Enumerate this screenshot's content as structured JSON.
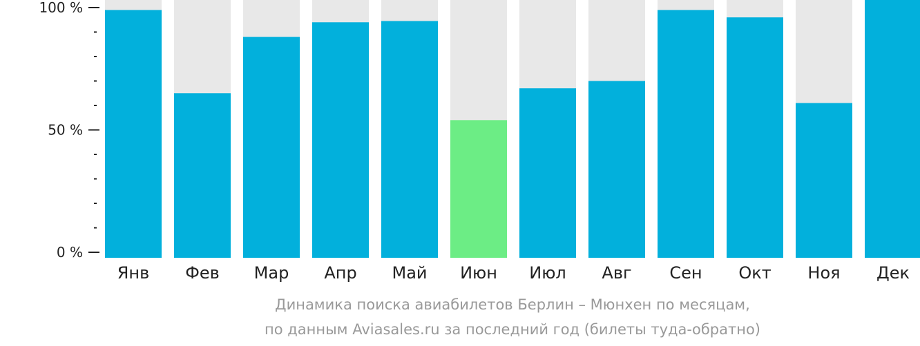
{
  "chart_data": {
    "type": "bar",
    "categories": [
      "Янв",
      "Фев",
      "Мар",
      "Апр",
      "Май",
      "Июн",
      "Июл",
      "Авг",
      "Сен",
      "Окт",
      "Ноя",
      "Дек"
    ],
    "values": [
      99,
      65,
      88,
      94,
      94.5,
      54,
      67,
      70,
      99,
      96,
      61,
      100
    ],
    "highlight_index": 5,
    "ylim": [
      0,
      100
    ],
    "yticks": [
      {
        "value": 0,
        "label": "0 %"
      },
      {
        "value": 50,
        "label": "50 %"
      },
      {
        "value": 100,
        "label": "100 %"
      }
    ],
    "minor_tick_step": 10,
    "colors": {
      "bar": "#02b0dc",
      "highlight": "#6ced85",
      "background_bar": "#e8e8e8",
      "axis": "#222222"
    },
    "caption_line1": "Динамика поиска авиабилетов Берлин – Мюнхен по месяцам,",
    "caption_line2": "по данным Aviasales.ru за последний год (билеты туда-обратно)"
  }
}
